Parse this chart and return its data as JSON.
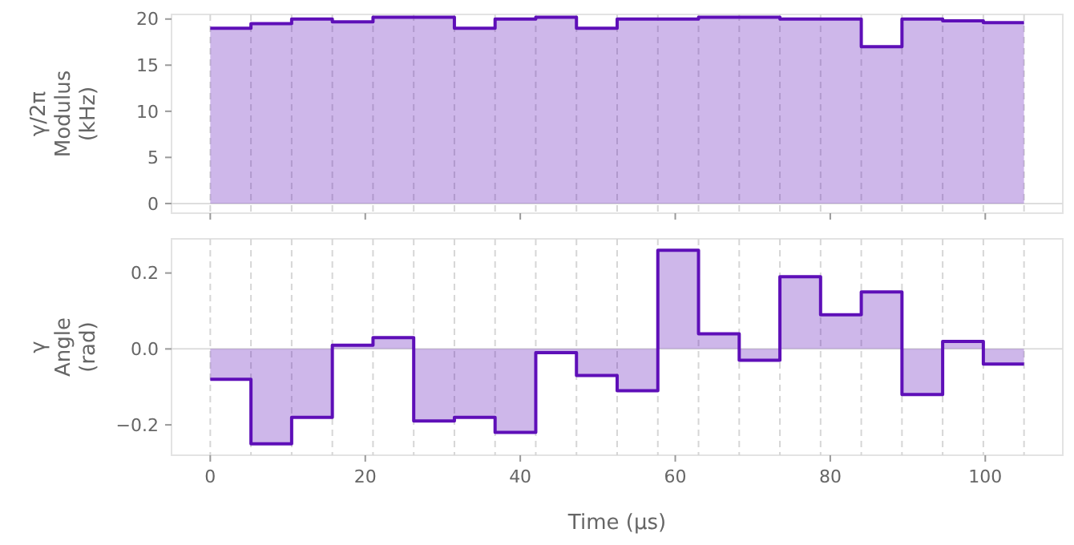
{
  "chart_data": [
    {
      "type": "step",
      "ylabel": "γ/2π\nModulus\n(kHz)",
      "x": [
        0,
        5.25,
        10.5,
        15.75,
        21,
        26.25,
        31.5,
        36.75,
        42,
        47.25,
        52.5,
        57.75,
        63,
        68.25,
        73.5,
        78.75,
        84,
        89.25,
        94.5,
        99.75,
        105
      ],
      "series": [
        {
          "color": "#5e0fb8",
          "values": [
            19.0,
            19.5,
            20.0,
            19.7,
            20.2,
            20.2,
            19.0,
            20.0,
            20.2,
            19.0,
            20.0,
            20.0,
            20.2,
            20.2,
            20.0,
            20.0,
            17.0,
            20.0,
            19.8,
            19.6,
            19.6
          ]
        }
      ],
      "xlim": [
        -5,
        110
      ],
      "xticks": [
        {
          "value": 0,
          "label": null
        },
        {
          "value": 20,
          "label": null
        },
        {
          "value": 40,
          "label": null
        },
        {
          "value": 60,
          "label": null
        },
        {
          "value": 80,
          "label": null
        },
        {
          "value": 100,
          "label": null
        }
      ],
      "ylim": [
        -1.05,
        20.5
      ],
      "yticks": [
        0,
        5,
        10,
        15,
        20
      ],
      "tick_labels": "y",
      "ref_lines": [
        {
          "axis": "x",
          "value": 0,
          "line_style": "dashed"
        },
        {
          "axis": "x",
          "value": 5.25,
          "line_style": "dashed"
        },
        {
          "axis": "x",
          "value": 10.5,
          "line_style": "dashed"
        },
        {
          "axis": "x",
          "value": 15.75,
          "line_style": "dashed"
        },
        {
          "axis": "x",
          "value": 21,
          "line_style": "dashed"
        },
        {
          "axis": "x",
          "value": 26.25,
          "line_style": "dashed"
        },
        {
          "axis": "x",
          "value": 31.5,
          "line_style": "dashed"
        },
        {
          "axis": "x",
          "value": 36.75,
          "line_style": "dashed"
        },
        {
          "axis": "x",
          "value": 42,
          "line_style": "dashed"
        },
        {
          "axis": "x",
          "value": 47.25,
          "line_style": "dashed"
        },
        {
          "axis": "x",
          "value": 52.5,
          "line_style": "dashed"
        },
        {
          "axis": "x",
          "value": 57.75,
          "line_style": "dashed"
        },
        {
          "axis": "x",
          "value": 63,
          "line_style": "dashed"
        },
        {
          "axis": "x",
          "value": 68.25,
          "line_style": "dashed"
        },
        {
          "axis": "x",
          "value": 73.5,
          "line_style": "dashed"
        },
        {
          "axis": "x",
          "value": 78.75,
          "line_style": "dashed"
        },
        {
          "axis": "x",
          "value": 84,
          "line_style": "dashed"
        },
        {
          "axis": "x",
          "value": 89.25,
          "line_style": "dashed"
        },
        {
          "axis": "x",
          "value": 94.5,
          "line_style": "dashed"
        },
        {
          "axis": "x",
          "value": 99.75,
          "line_style": "dashed"
        },
        {
          "axis": "x",
          "value": 105,
          "line_style": "dashed"
        }
      ]
    },
    {
      "type": "step",
      "ylabel": "γ\nAngle\n(rad)",
      "xlabel": "Time (µs)",
      "x": [
        0,
        5.25,
        10.5,
        15.75,
        21,
        26.25,
        31.5,
        36.75,
        42,
        47.25,
        52.5,
        57.75,
        63,
        68.25,
        73.5,
        78.75,
        84,
        89.25,
        94.5,
        99.75,
        105
      ],
      "series": [
        {
          "color": "#5e0fb8",
          "values": [
            -0.08,
            -0.25,
            -0.18,
            0.01,
            0.03,
            -0.19,
            -0.18,
            -0.22,
            -0.01,
            -0.07,
            -0.11,
            0.26,
            0.04,
            -0.03,
            0.19,
            0.09,
            0.15,
            -0.12,
            0.02,
            -0.04,
            -0.04
          ]
        }
      ],
      "xlim": [
        -5,
        110
      ],
      "xticks": [
        0,
        20,
        40,
        60,
        80,
        100
      ],
      "ylim": [
        -0.28,
        0.29
      ],
      "yticks": [
        {
          "value": -0.2,
          "label": "−0.2"
        },
        {
          "value": 0,
          "label": "0.0"
        },
        {
          "value": 0.2,
          "label": "0.2"
        }
      ],
      "ref_lines": [
        {
          "axis": "x",
          "value": 0,
          "line_style": "dashed"
        },
        {
          "axis": "x",
          "value": 5.25,
          "line_style": "dashed"
        },
        {
          "axis": "x",
          "value": 10.5,
          "line_style": "dashed"
        },
        {
          "axis": "x",
          "value": 15.75,
          "line_style": "dashed"
        },
        {
          "axis": "x",
          "value": 21,
          "line_style": "dashed"
        },
        {
          "axis": "x",
          "value": 26.25,
          "line_style": "dashed"
        },
        {
          "axis": "x",
          "value": 31.5,
          "line_style": "dashed"
        },
        {
          "axis": "x",
          "value": 36.75,
          "line_style": "dashed"
        },
        {
          "axis": "x",
          "value": 42,
          "line_style": "dashed"
        },
        {
          "axis": "x",
          "value": 47.25,
          "line_style": "dashed"
        },
        {
          "axis": "x",
          "value": 52.5,
          "line_style": "dashed"
        },
        {
          "axis": "x",
          "value": 57.75,
          "line_style": "dashed"
        },
        {
          "axis": "x",
          "value": 63,
          "line_style": "dashed"
        },
        {
          "axis": "x",
          "value": 68.25,
          "line_style": "dashed"
        },
        {
          "axis": "x",
          "value": 73.5,
          "line_style": "dashed"
        },
        {
          "axis": "x",
          "value": 78.75,
          "line_style": "dashed"
        },
        {
          "axis": "x",
          "value": 84,
          "line_style": "dashed"
        },
        {
          "axis": "x",
          "value": 89.25,
          "line_style": "dashed"
        },
        {
          "axis": "x",
          "value": 94.5,
          "line_style": "dashed"
        },
        {
          "axis": "x",
          "value": 99.75,
          "line_style": "dashed"
        },
        {
          "axis": "x",
          "value": 105,
          "line_style": "dashed"
        }
      ]
    }
  ]
}
